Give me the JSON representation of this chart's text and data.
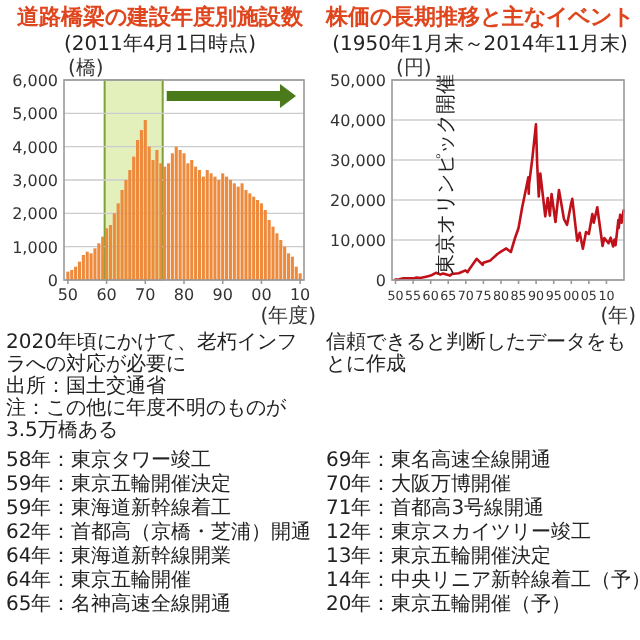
{
  "chart_data": [
    {
      "type": "bar",
      "title": "道路橋梁の建設年度別施設数",
      "subtitle": "(2011年4月1日時点)",
      "ylabel": "(橋)",
      "xlabel": "(年度)",
      "x": [
        1950,
        1951,
        1952,
        1953,
        1954,
        1955,
        1956,
        1957,
        1958,
        1959,
        1960,
        1961,
        1962,
        1963,
        1964,
        1965,
        1966,
        1967,
        1968,
        1969,
        1970,
        1971,
        1972,
        1973,
        1974,
        1975,
        1976,
        1977,
        1978,
        1979,
        1980,
        1981,
        1982,
        1983,
        1984,
        1985,
        1986,
        1987,
        1988,
        1989,
        1990,
        1991,
        1992,
        1993,
        1994,
        1995,
        1996,
        1997,
        1998,
        1999,
        2000,
        2001,
        2002,
        2003,
        2004,
        2005,
        2006,
        2007,
        2008,
        2009,
        2010
      ],
      "values": [
        250,
        300,
        400,
        550,
        750,
        850,
        800,
        950,
        1100,
        1300,
        1550,
        1650,
        2000,
        2300,
        2700,
        3000,
        3300,
        3700,
        4200,
        4500,
        4800,
        4000,
        3600,
        3900,
        3500,
        3400,
        3500,
        3800,
        4000,
        3900,
        3800,
        3500,
        3600,
        3400,
        3300,
        3100,
        3300,
        3200,
        3100,
        3000,
        3200,
        3100,
        3000,
        2900,
        2800,
        2900,
        2700,
        2600,
        2500,
        2400,
        2300,
        2100,
        1800,
        1600,
        1400,
        1200,
        1000,
        800,
        700,
        400,
        200
      ],
      "color": "#ee8a3c",
      "xlim": [
        1949,
        2011
      ],
      "xticks": [
        {
          "value": 1950,
          "label": "50"
        },
        {
          "value": 1960,
          "label": "60"
        },
        {
          "value": 1970,
          "label": "70"
        },
        {
          "value": 1980,
          "label": "80"
        },
        {
          "value": 1990,
          "label": "90"
        },
        {
          "value": 2000,
          "label": "00"
        },
        {
          "value": 2010,
          "label": "10"
        }
      ],
      "ylim": [
        0,
        6000
      ],
      "yticks": [
        0,
        {
          "value": 1000,
          "label": "1,000"
        },
        {
          "value": 2000,
          "label": "2,000"
        },
        {
          "value": 3000,
          "label": "3,000"
        },
        {
          "value": 4000,
          "label": "4,000"
        },
        {
          "value": 5000,
          "label": "5,000"
        },
        {
          "value": 6000,
          "label": "6,000"
        }
      ],
      "grid": "y",
      "bands": [
        {
          "axis": "x",
          "from": 1959.5,
          "to": 1974.5,
          "color": "#e4f0bc"
        }
      ],
      "annotations": [
        "2020年頃にかけて、老朽インフラへの対応が必要に",
        "出所：国土交通省",
        "注：この他に年度不明のものが3.5万橋ある"
      ]
    },
    {
      "type": "line",
      "title": "株価の長期推移と主なイベント",
      "subtitle": "(1950年1月末～2014年11月末)",
      "ylabel": "(円)",
      "xlabel": "(年)",
      "x": [
        1950,
        1951,
        1952,
        1953,
        1954,
        1955,
        1956,
        1957,
        1958,
        1959,
        1960,
        1961.5,
        1962.8,
        1963.5,
        1965.5,
        1966,
        1968,
        1969.9,
        1970.5,
        1971,
        1973.1,
        1974.8,
        1975,
        1977,
        1979,
        1980,
        1981.5,
        1982.8,
        1984,
        1985,
        1986,
        1987.8,
        1987.9,
        1988,
        1988.9,
        1989.95,
        1990.3,
        1990.75,
        1991.2,
        1992.6,
        1993.3,
        1993.9,
        1994.4,
        1995.5,
        1996.5,
        1997.9,
        1998.8,
        1999.9,
        2000.3,
        2001.7,
        2002.4,
        2003.3,
        2004.2,
        2005,
        2006,
        2006.4,
        2007.4,
        2008.9,
        2009.4,
        2010.6,
        2011.2,
        2011.9,
        2012.3,
        2012.6,
        2013.4,
        2013.5,
        2013.9,
        2014.3,
        2014.9
      ],
      "values": [
        100,
        200,
        400,
        400,
        400,
        400,
        600,
        500,
        700,
        900,
        1100,
        1800,
        1400,
        1600,
        1100,
        1500,
        1700,
        2400,
        1950,
        2700,
        5300,
        3800,
        4300,
        4900,
        6500,
        7100,
        7900,
        7000,
        10500,
        13000,
        18000,
        25700,
        21600,
        24000,
        30200,
        38900,
        29000,
        20900,
        26600,
        15900,
        20500,
        16100,
        21500,
        14500,
        22500,
        15300,
        13800,
        18900,
        20300,
        9800,
        11800,
        7800,
        12000,
        11500,
        16500,
        14300,
        18200,
        8500,
        10500,
        9200,
        10600,
        8400,
        10100,
        8700,
        15000,
        13000,
        16300,
        14300,
        17450
      ],
      "color": "#c0101a",
      "xlim": [
        1949,
        2015
      ],
      "xticks": [
        {
          "value": 1950,
          "label": "50"
        },
        {
          "value": 1955,
          "label": "55"
        },
        {
          "value": 1960,
          "label": "60"
        },
        {
          "value": 1965,
          "label": "65"
        },
        {
          "value": 1970,
          "label": "70"
        },
        {
          "value": 1975,
          "label": "75"
        },
        {
          "value": 1980,
          "label": "80"
        },
        {
          "value": 1985,
          "label": "85"
        },
        {
          "value": 1990,
          "label": "90"
        },
        {
          "value": 1995,
          "label": "95"
        },
        {
          "value": 2000,
          "label": "00"
        },
        {
          "value": 2005,
          "label": "05"
        },
        {
          "value": 2010,
          "label": "10"
        }
      ],
      "ylim": [
        0,
        50000
      ],
      "yticks": [
        0,
        {
          "value": 10000,
          "label": "10,000"
        },
        {
          "value": 20000,
          "label": "20,000"
        },
        {
          "value": 30000,
          "label": "30,000"
        },
        {
          "value": 40000,
          "label": "40,000"
        },
        {
          "value": 50000,
          "label": "50,000"
        }
      ],
      "grid": "y",
      "annotations": [
        {
          "text": "東京オリンピック開催",
          "x": 1964,
          "y": 1500
        },
        "信頼できると判断したデータをもとに作成",
        "58年：東京タワー竣工",
        "59年：東京五輪開催決定",
        "59年：東海道新幹線着工",
        "62年：首都高（京橋・芝浦）開通",
        "64年：東海道新幹線開業",
        "64年：東京五輪開催",
        "65年：名神高速全線開通",
        "69年：東名高速全線開通",
        "70年：大阪万博開催",
        "71年：首都高3号線開通",
        "12年：東京スカイツリー竣工",
        "13年：東京五輪開催決定",
        "14年：中央リニア新幹線着工（予）",
        "20年：東京五輪開催（予）"
      ]
    }
  ]
}
